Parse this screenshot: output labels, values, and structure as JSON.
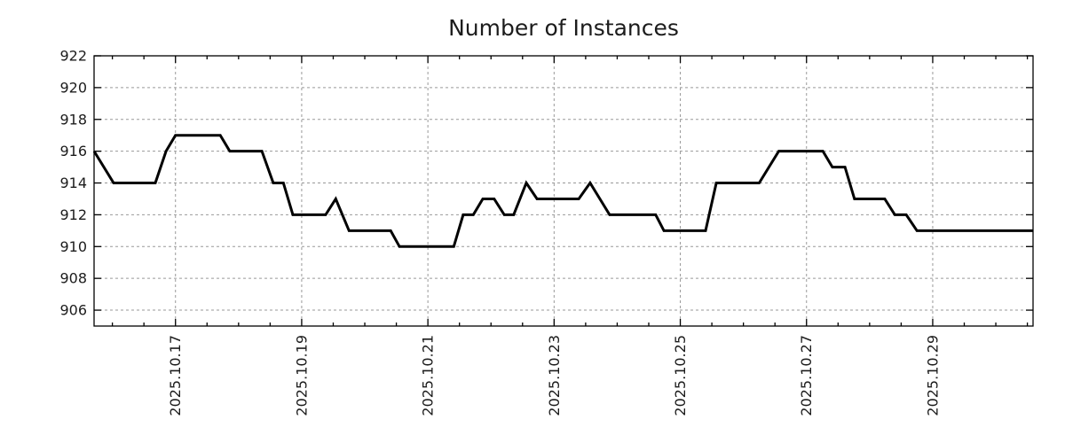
{
  "colors": {
    "line": "#000000",
    "grid": "#999999",
    "axis": "#000000",
    "text": "#1c1c1c",
    "background": "#ffffff"
  },
  "chart_data": {
    "type": "line",
    "title": "Number of Instances",
    "xlabel": "",
    "ylabel": "",
    "grid": true,
    "legend": "none",
    "x_axis": {
      "unit": "date (decimal day of October 2025)",
      "range_days": [
        15.71,
        30.59
      ],
      "major_ticks_days": [
        17,
        19,
        21,
        23,
        25,
        27,
        29
      ],
      "major_tick_labels": [
        "2025.10.17",
        "2025.10.19",
        "2025.10.21",
        "2025.10.23",
        "2025.10.25",
        "2025.10.27",
        "2025.10.29"
      ],
      "minor_tick_interval_days": 0.5
    },
    "y_axis": {
      "range": [
        905,
        922
      ],
      "major_ticks": [
        906,
        908,
        910,
        912,
        914,
        916,
        918,
        920,
        922
      ],
      "major_tick_labels": [
        "906",
        "908",
        "910",
        "912",
        "914",
        "916",
        "918",
        "920",
        "922"
      ]
    },
    "series": [
      {
        "name": "instances",
        "color": "#000000",
        "points": [
          [
            15.71,
            916
          ],
          [
            16.02,
            914
          ],
          [
            16.68,
            914
          ],
          [
            16.85,
            916
          ],
          [
            17.0,
            917
          ],
          [
            17.71,
            917
          ],
          [
            17.86,
            916
          ],
          [
            18.37,
            916
          ],
          [
            18.55,
            914
          ],
          [
            18.71,
            914
          ],
          [
            18.86,
            912
          ],
          [
            19.38,
            912
          ],
          [
            19.54,
            913
          ],
          [
            19.75,
            911
          ],
          [
            20.41,
            911
          ],
          [
            20.55,
            910
          ],
          [
            21.41,
            910
          ],
          [
            21.56,
            912
          ],
          [
            21.72,
            912
          ],
          [
            21.87,
            913
          ],
          [
            22.05,
            913
          ],
          [
            22.21,
            912
          ],
          [
            22.36,
            912
          ],
          [
            22.56,
            914
          ],
          [
            22.73,
            913
          ],
          [
            23.39,
            913
          ],
          [
            23.57,
            914
          ],
          [
            23.88,
            912
          ],
          [
            24.61,
            912
          ],
          [
            24.74,
            911
          ],
          [
            25.4,
            911
          ],
          [
            25.57,
            914
          ],
          [
            26.25,
            914
          ],
          [
            26.56,
            916
          ],
          [
            27.26,
            916
          ],
          [
            27.41,
            915
          ],
          [
            27.61,
            915
          ],
          [
            27.76,
            913
          ],
          [
            28.24,
            913
          ],
          [
            28.4,
            912
          ],
          [
            28.58,
            912
          ],
          [
            28.75,
            911
          ],
          [
            30.59,
            911
          ]
        ]
      }
    ]
  }
}
